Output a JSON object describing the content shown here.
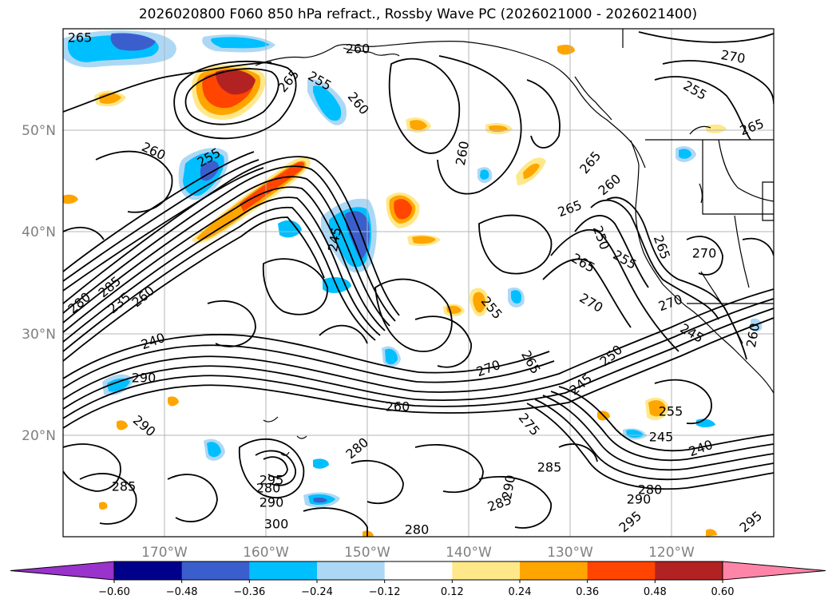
{
  "title": "2026020800 F060 850 hPa refract., Rossby Wave PC (2026021000 - 2026021400)",
  "map": {
    "lat_ticks": [
      "50°N",
      "40°N",
      "30°N",
      "20°N"
    ],
    "lon_ticks": [
      "170°W",
      "160°W",
      "150°W",
      "140°W",
      "130°W",
      "120°W"
    ],
    "lat_range": [
      10,
      60
    ],
    "lon_range": [
      -178,
      -108
    ]
  },
  "colorbar": {
    "colors": [
      "#9933cc",
      "#00008b",
      "#3a5fcd",
      "#00bfff",
      "#add8f5",
      "#ffffff",
      "#ffe88a",
      "#ffa500",
      "#ff4500",
      "#b22222",
      "#ff85a8"
    ],
    "tick_labels": [
      "−0.60",
      "−0.48",
      "−0.36",
      "−0.24",
      "−0.12",
      "0.12",
      "0.24",
      "0.36",
      "0.48",
      "0.60"
    ]
  },
  "contour_labels": [
    "265",
    "260",
    "270",
    "265",
    "255",
    "260",
    "255",
    "265",
    "260",
    "255",
    "260",
    "265",
    "260",
    "265",
    "250",
    "255",
    "265",
    "270",
    "265",
    "245",
    "270",
    "280",
    "285",
    "235",
    "260",
    "255",
    "270",
    "245",
    "240",
    "265",
    "250",
    "245",
    "270",
    "260",
    "290",
    "290",
    "275",
    "255",
    "245",
    "240",
    "280",
    "285",
    "280",
    "290",
    "295",
    "300",
    "285",
    "290",
    "285",
    "280",
    "290",
    "295",
    "295",
    "280",
    "260"
  ]
}
